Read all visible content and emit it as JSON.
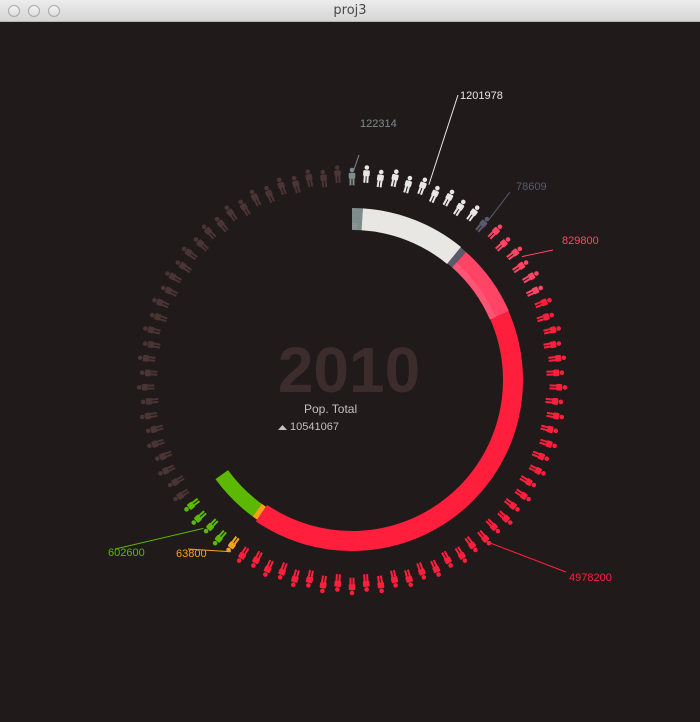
{
  "window": {
    "title": "proj3"
  },
  "chart_data": {
    "type": "radial",
    "year": "2010",
    "center_label": "Pop. Total",
    "total_value": "10541067",
    "total_trend": "up",
    "segments": [
      {
        "value": 122314,
        "label": "122314",
        "color": "#7f8c8c"
      },
      {
        "value": 1201978,
        "label": "1201978",
        "color": "#e8e7e3"
      },
      {
        "value": 78609,
        "label": "78609",
        "color": "#5a5a6c"
      },
      {
        "value": 829800,
        "label": "829800",
        "color": "#ff4466"
      },
      {
        "value": 4978200,
        "label": "4978200",
        "color": "#ff1f3d"
      },
      {
        "value": 63800,
        "label": "63800",
        "color": "#f7a21b"
      },
      {
        "value": 602600,
        "label": "602600",
        "color": "#5cb800"
      }
    ],
    "inactive_color": "#4a3434"
  }
}
